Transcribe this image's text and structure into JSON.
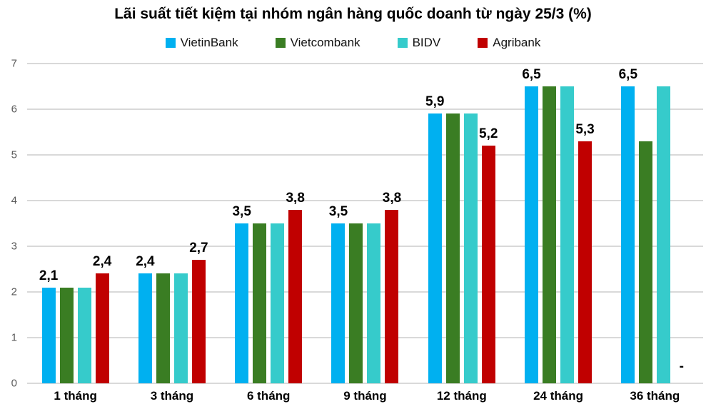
{
  "chart_data": {
    "type": "bar",
    "title": "Lãi suất tiết kiệm tại nhóm ngân hàng quốc doanh từ ngày 25/3 (%)",
    "categories": [
      "1 tháng",
      "3 tháng",
      "6 tháng",
      "9 tháng",
      "12 tháng",
      "24 tháng",
      "36 tháng"
    ],
    "series": [
      {
        "name": "VietinBank",
        "color": "#00B0F0",
        "values": [
          2.1,
          2.4,
          3.5,
          3.5,
          5.9,
          6.5,
          6.5
        ],
        "labels": [
          "2,1",
          "2,4",
          "3,5",
          "3,5",
          "5,9",
          "6,5",
          "6,5"
        ]
      },
      {
        "name": "Vietcombank",
        "color": "#3A7D23",
        "values": [
          2.1,
          2.4,
          3.5,
          3.5,
          5.9,
          6.5,
          5.3
        ],
        "labels": [
          null,
          null,
          null,
          null,
          null,
          null,
          null
        ]
      },
      {
        "name": "BIDV",
        "color": "#36CBCB",
        "values": [
          2.1,
          2.4,
          3.5,
          3.5,
          5.9,
          6.5,
          6.5
        ],
        "labels": [
          null,
          null,
          null,
          null,
          null,
          null,
          null
        ]
      },
      {
        "name": "Agribank",
        "color": "#C00000",
        "values": [
          2.4,
          2.7,
          3.8,
          3.8,
          5.2,
          5.3,
          null
        ],
        "labels": [
          "2,4",
          "2,7",
          "3,8",
          "3,8",
          "5,2",
          "5,3",
          "-"
        ]
      }
    ],
    "ylim": [
      0,
      7
    ],
    "yticks": [
      "0",
      "1",
      "2",
      "3",
      "4",
      "5",
      "6",
      "7"
    ],
    "grid": true,
    "legend_position": "top",
    "colors": {
      "gridline": "#D9D9D9",
      "axis_text": "#595959",
      "label_text": "#000000"
    }
  }
}
